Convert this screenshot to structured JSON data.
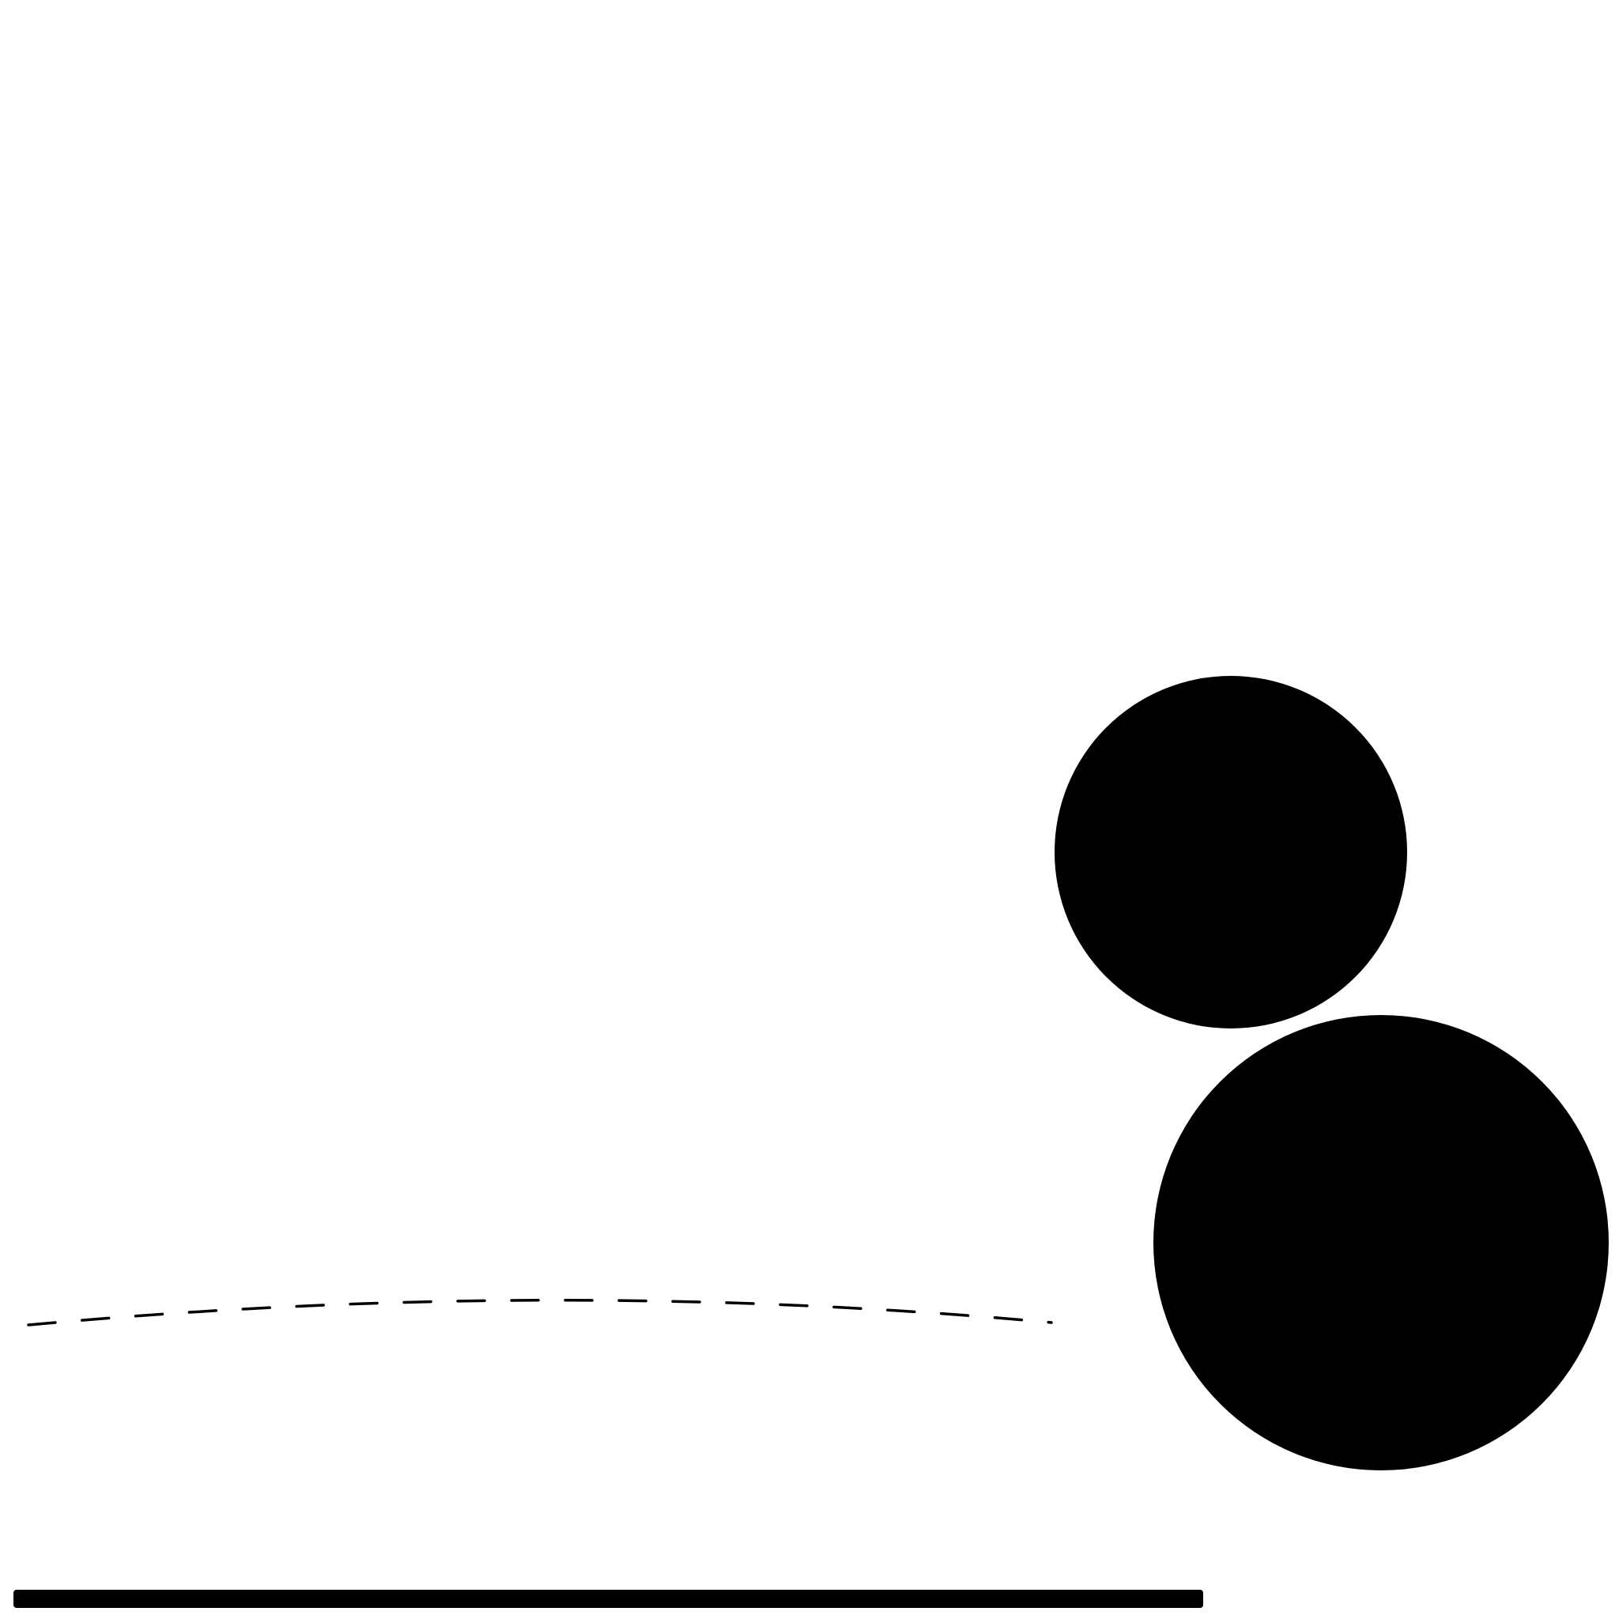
{
  "diagram": {
    "background_color": "#ffffff",
    "ink_color": "#000000",
    "shapes": [
      {
        "id": "small-circle",
        "kind": "filled-circle",
        "fill": "#000000"
      },
      {
        "id": "large-circle",
        "kind": "filled-circle",
        "fill": "#000000"
      },
      {
        "id": "dashed-curve",
        "kind": "dashed-arc",
        "stroke": "#000000"
      },
      {
        "id": "ground-bar",
        "kind": "solid-bar",
        "fill": "#000000"
      }
    ]
  }
}
